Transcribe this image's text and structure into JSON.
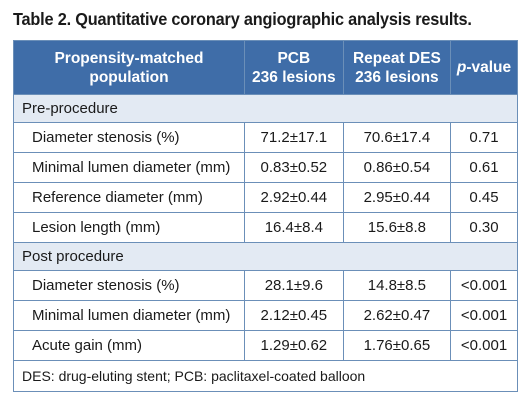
{
  "caption": "Table 2. Quantitative coronary angiographic analysis results.",
  "header": {
    "col0_line1": "Propensity-matched",
    "col0_line2": "population",
    "col1_line1": "PCB",
    "col1_line2": "236 lesions",
    "col2_line1": "Repeat DES",
    "col2_line2": "236 lesions",
    "col3_italic": "p",
    "col3_rest": "-value"
  },
  "sections": [
    {
      "title": "Pre-procedure",
      "rows": [
        {
          "label": "Diameter stenosis (%)",
          "pcb": "71.2±17.1",
          "des": "70.6±17.4",
          "p": "0.71"
        },
        {
          "label": "Minimal lumen diameter (mm)",
          "pcb": "0.83±0.52",
          "des": "0.86±0.54",
          "p": "0.61"
        },
        {
          "label": "Reference diameter (mm)",
          "pcb": "2.92±0.44",
          "des": "2.95±0.44",
          "p": "0.45"
        },
        {
          "label": "Lesion length (mm)",
          "pcb": "16.4±8.4",
          "des": "15.6±8.8",
          "p": "0.30"
        }
      ]
    },
    {
      "title": "Post procedure",
      "rows": [
        {
          "label": "Diameter stenosis (%)",
          "pcb": "28.1±9.6",
          "des": "14.8±8.5",
          "p": "<0.001"
        },
        {
          "label": "Minimal lumen diameter (mm)",
          "pcb": "2.12±0.45",
          "des": "2.62±0.47",
          "p": "<0.001"
        },
        {
          "label": "Acute gain (mm)",
          "pcb": "1.29±0.62",
          "des": "1.76±0.65",
          "p": "<0.001"
        }
      ]
    }
  ],
  "footnote": "DES: drug-eluting stent; PCB: paclitaxel-coated balloon"
}
